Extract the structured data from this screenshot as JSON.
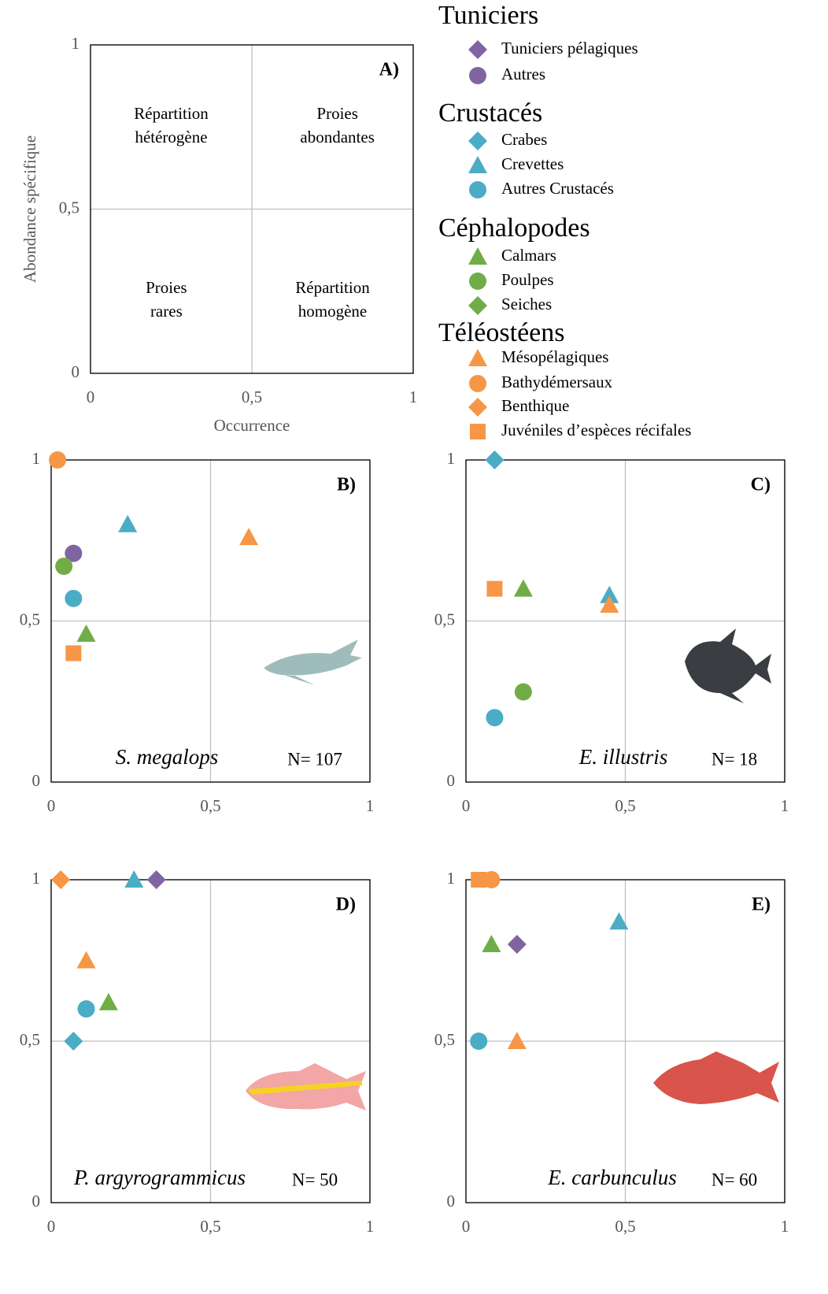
{
  "legend": {
    "groups": [
      {
        "name": "Tuniciers",
        "color": "#8064a2",
        "items": [
          {
            "name": "Tuniciers pélagiques",
            "marker": "diamond"
          },
          {
            "name": "Autres",
            "marker": "circle"
          }
        ]
      },
      {
        "name": "Crustacés",
        "color": "#4bacc6",
        "items": [
          {
            "name": "Crabes",
            "marker": "diamond"
          },
          {
            "name": "Crevettes",
            "marker": "triangle"
          },
          {
            "name": "Autres Crustacés",
            "marker": "circle"
          }
        ]
      },
      {
        "name": "Céphalopodes",
        "color": "#70ad47",
        "items": [
          {
            "name": "Calmars",
            "marker": "triangle"
          },
          {
            "name": "Poulpes",
            "marker": "circle"
          },
          {
            "name": "Seiches",
            "marker": "diamond"
          }
        ]
      },
      {
        "name": "Téléostéens",
        "color": "#f79646",
        "items": [
          {
            "name": "Mésopélagiques",
            "marker": "triangle"
          },
          {
            "name": "Bathydémersaux",
            "marker": "circle"
          },
          {
            "name": "Benthique",
            "marker": "diamond"
          },
          {
            "name": "Juvéniles d’espèces récifales",
            "marker": "square"
          }
        ]
      }
    ]
  },
  "chart_data": [
    {
      "type": "quadrant",
      "title": "A)",
      "xlabel": "Occurrence",
      "ylabel": "Abondance spécifique",
      "quadrants": [
        {
          "lines": [
            "Répartition",
            "hétérogène"
          ]
        },
        {
          "lines": [
            "Proies",
            "abondantes"
          ]
        },
        {
          "lines": [
            "Proies",
            "rares"
          ]
        },
        {
          "lines": [
            "Répartition",
            "homogène"
          ]
        }
      ],
      "xlim": [
        0,
        1
      ],
      "ylim": [
        0,
        1
      ],
      "xticks": [
        0,
        {
          "value": 0.5,
          "label": "0,5"
        },
        1
      ],
      "yticks": [
        0,
        {
          "value": 0.5,
          "label": "0,5"
        },
        1
      ],
      "grid": true
    },
    {
      "type": "scatter",
      "title": "B)",
      "species": "S. megalops",
      "n_label": "N= 107",
      "x": [
        null,
        0.07,
        null,
        0.24,
        0.07,
        0.11,
        0.04,
        null,
        0.62,
        0.02,
        null,
        0.07
      ],
      "values": [
        null,
        0.71,
        null,
        0.8,
        0.57,
        0.46,
        0.67,
        null,
        0.76,
        1.0,
        null,
        0.4
      ],
      "xlim": [
        0,
        1
      ],
      "ylim": [
        0,
        1
      ],
      "xticks": [
        0,
        {
          "value": 0.5,
          "label": "0,5"
        },
        1
      ],
      "yticks": [
        0,
        {
          "value": 0.5,
          "label": "0,5"
        },
        1
      ],
      "grid": true
    },
    {
      "type": "scatter",
      "title": "C)",
      "species": "E. illustris",
      "n_label": "N= 18",
      "x": [
        null,
        null,
        0.09,
        0.45,
        0.09,
        0.18,
        0.18,
        null,
        0.45,
        null,
        null,
        0.09
      ],
      "values": [
        null,
        null,
        1.0,
        0.58,
        0.2,
        0.6,
        0.28,
        null,
        0.55,
        null,
        null,
        0.6
      ],
      "xlim": [
        0,
        1
      ],
      "ylim": [
        0,
        1
      ],
      "xticks": [
        0,
        {
          "value": 0.5,
          "label": "0,5"
        },
        1
      ],
      "yticks": [
        0,
        {
          "value": 0.5,
          "label": "0,5"
        },
        1
      ],
      "grid": true
    },
    {
      "type": "scatter",
      "title": "D)",
      "species": "P. argyrogrammicus",
      "n_label": "N= 50",
      "x": [
        0.33,
        null,
        0.07,
        0.26,
        0.11,
        0.18,
        null,
        null,
        0.11,
        null,
        0.03,
        null
      ],
      "values": [
        1.0,
        null,
        0.5,
        1.0,
        0.6,
        0.62,
        null,
        null,
        0.75,
        null,
        1.0,
        null
      ],
      "xlim": [
        0,
        1
      ],
      "ylim": [
        0,
        1
      ],
      "xticks": [
        0,
        {
          "value": 0.5,
          "label": "0,5"
        },
        1
      ],
      "yticks": [
        0,
        {
          "value": 0.5,
          "label": "0,5"
        },
        1
      ],
      "grid": true
    },
    {
      "type": "scatter",
      "title": "E)",
      "species": "E. carbunculus",
      "n_label": "N= 60",
      "x": [
        0.16,
        null,
        null,
        0.48,
        0.04,
        0.08,
        null,
        null,
        0.16,
        0.08,
        null,
        0.04
      ],
      "values": [
        0.8,
        null,
        null,
        0.87,
        0.5,
        0.8,
        null,
        null,
        0.5,
        1.0,
        null,
        1.0
      ],
      "xlim": [
        0,
        1
      ],
      "ylim": [
        0,
        1
      ],
      "xticks": [
        0,
        {
          "value": 0.5,
          "label": "0,5"
        },
        1
      ],
      "yticks": [
        0,
        {
          "value": 0.5,
          "label": "0,5"
        },
        1
      ],
      "grid": true
    }
  ]
}
